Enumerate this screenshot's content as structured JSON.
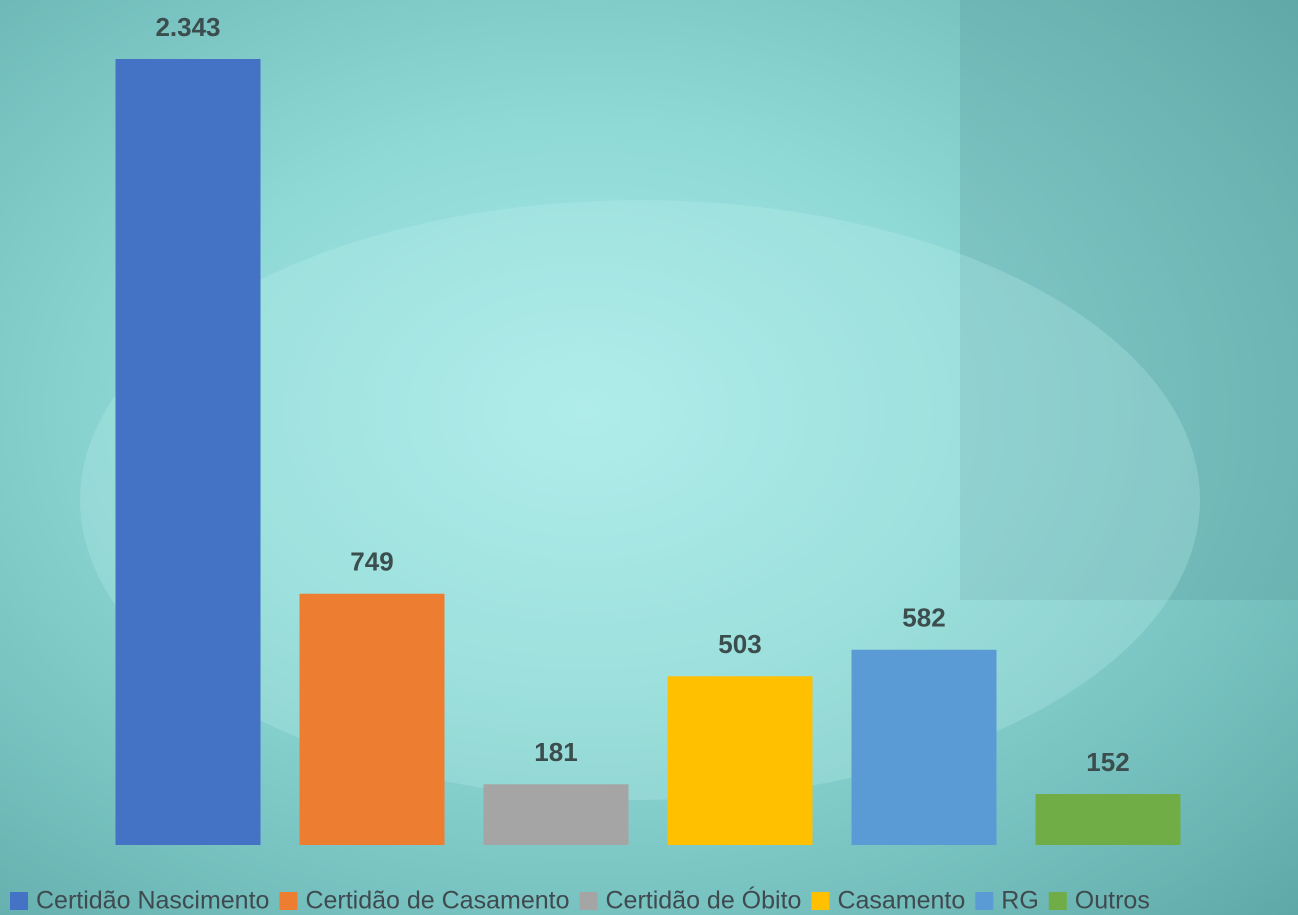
{
  "chart_data": {
    "type": "bar",
    "series": [
      {
        "name": "Certidão Nascimento",
        "color": "#4472c4",
        "values": [
          2343
        ],
        "value_labels": [
          "2.343"
        ]
      },
      {
        "name": "Certidão de Casamento",
        "color": "#ed7d31",
        "values": [
          749
        ]
      },
      {
        "name": "Certidão de Óbito",
        "color": "#a5a5a5",
        "values": [
          181
        ]
      },
      {
        "name": "Casamento",
        "color": "#ffc000",
        "values": [
          503
        ]
      },
      {
        "name": "RG",
        "color": "#5b9bd5",
        "values": [
          582
        ]
      },
      {
        "name": "Outros",
        "color": "#70ad47",
        "values": [
          152
        ]
      }
    ],
    "legend": "bottom"
  }
}
